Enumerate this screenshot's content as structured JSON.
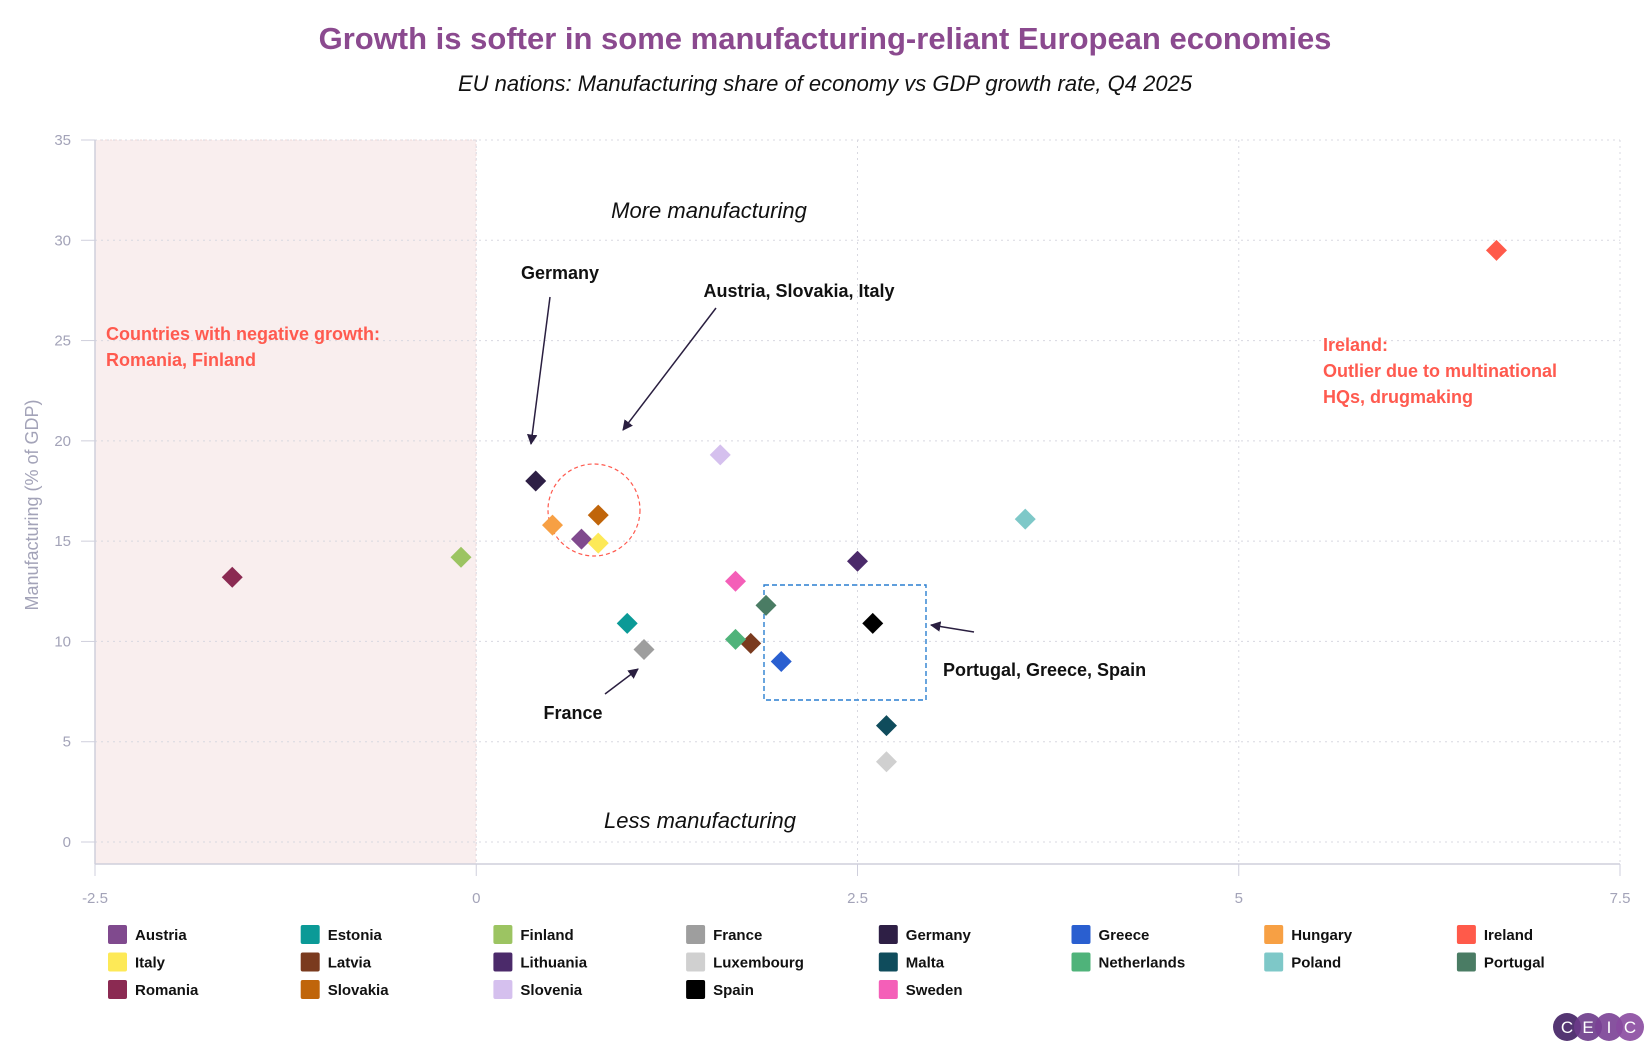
{
  "chart_data": {
    "type": "scatter",
    "title": "Growth is softer in some manufacturing-reliant European economies",
    "subtitle": "EU nations: Manufacturing share of economy vs GDP growth rate, Q4 2025",
    "xlabel": "",
    "ylabel": "Manufacturing (% of GDP)",
    "xlim": [
      -2.5,
      7.5
    ],
    "ylim": [
      0,
      35
    ],
    "x_ticks": [
      "-2.5",
      "0",
      "2.5",
      "5",
      "7.5"
    ],
    "y_ticks": [
      "0",
      "5",
      "10",
      "15",
      "20",
      "25",
      "30",
      "35"
    ],
    "grid": true,
    "legend_placement": "bottom",
    "marker": "diamond",
    "title_color": "#8b4a8f",
    "shaded_region_color": "#f9eeee",
    "series": [
      {
        "name": "Austria",
        "color": "#804a8e",
        "x": 0.69,
        "y": 15.1
      },
      {
        "name": "Estonia",
        "color": "#0b9a97",
        "x": 0.99,
        "y": 10.9
      },
      {
        "name": "Finland",
        "color": "#9cc462",
        "x": -0.1,
        "y": 14.2
      },
      {
        "name": "France",
        "color": "#9e9e9e",
        "x": 1.1,
        "y": 9.6
      },
      {
        "name": "Germany",
        "color": "#2e1f45",
        "x": 0.39,
        "y": 18.0
      },
      {
        "name": "Greece",
        "color": "#2a5fd0",
        "x": 2.0,
        "y": 9.0
      },
      {
        "name": "Hungary",
        "color": "#f7a044",
        "x": 0.5,
        "y": 15.8
      },
      {
        "name": "Ireland",
        "color": "#ff5a4a",
        "x": 6.69,
        "y": 29.5
      },
      {
        "name": "Italy",
        "color": "#fde957",
        "x": 0.8,
        "y": 14.9
      },
      {
        "name": "Latvia",
        "color": "#7a3a1e",
        "x": 1.8,
        "y": 9.9
      },
      {
        "name": "Lithuania",
        "color": "#4b2a6a",
        "x": 2.5,
        "y": 14.0
      },
      {
        "name": "Luxembourg",
        "color": "#d0d0d0",
        "x": 2.69,
        "y": 4.0
      },
      {
        "name": "Malta",
        "color": "#0f4c5c",
        "x": 2.69,
        "y": 5.8
      },
      {
        "name": "Netherlands",
        "color": "#4fb37a",
        "x": 1.7,
        "y": 10.1
      },
      {
        "name": "Poland",
        "color": "#7ec8c8",
        "x": 3.6,
        "y": 16.1
      },
      {
        "name": "Portugal",
        "color": "#4a7c64",
        "x": 1.9,
        "y": 11.8
      },
      {
        "name": "Romania",
        "color": "#8b2a52",
        "x": -1.6,
        "y": 13.2
      },
      {
        "name": "Slovakia",
        "color": "#c0650a",
        "x": 0.8,
        "y": 16.3
      },
      {
        "name": "Slovenia",
        "color": "#d5c0ee",
        "x": 1.6,
        "y": 19.3
      },
      {
        "name": "Spain",
        "color": "#000000",
        "x": 2.6,
        "y": 10.9
      },
      {
        "name": "Sweden",
        "color": "#f45fb8",
        "x": 1.7,
        "y": 13.0
      }
    ],
    "annotations": {
      "more": "More manufacturing",
      "less": "Less manufacturing",
      "germany": "Germany",
      "austria_group": "Austria, Slovakia, Italy",
      "france": "France",
      "portugal_group": "Portugal, Greece, Spain",
      "negative_line1": "Countries with negative growth:",
      "negative_line2": "Romania, Finland",
      "ireland_line1": "Ireland:",
      "ireland_line2": "Outlier due to multinational",
      "ireland_line3": "HQs, drugmaking"
    }
  },
  "logo": {
    "letters": [
      "C",
      "E",
      "I",
      "C"
    ],
    "color": "#6b3a8a"
  }
}
